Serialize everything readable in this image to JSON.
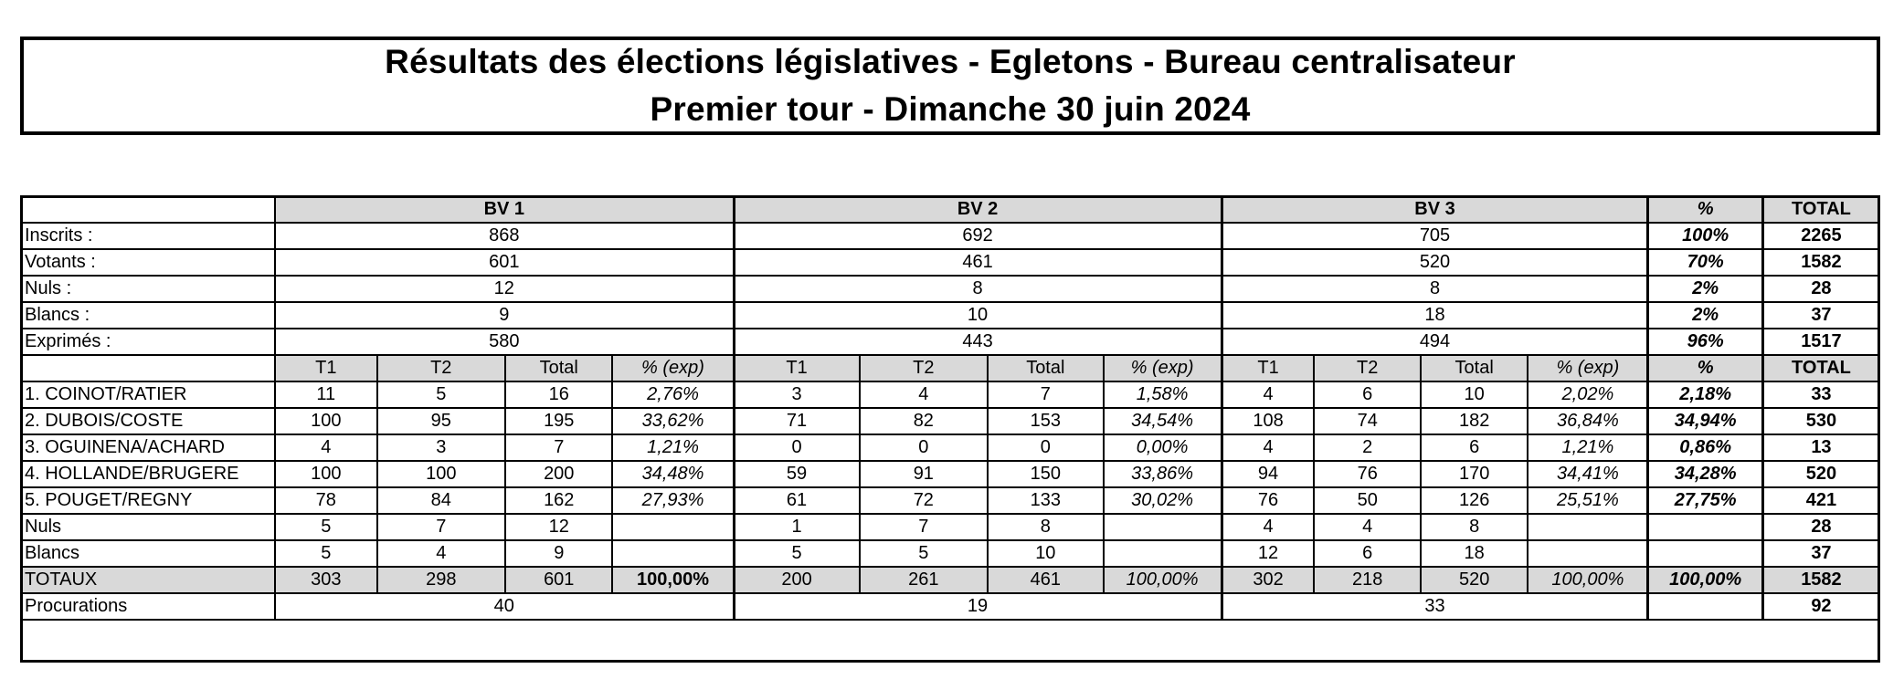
{
  "title": {
    "line1": "Résultats des élections législatives - Egletons - Bureau centralisateur",
    "line2": "Premier tour - Dimanche 30 juin 2024"
  },
  "header": {
    "bv1": "BV 1",
    "bv2": "BV 2",
    "bv3": "BV 3",
    "pct": "%",
    "total": "TOTAL"
  },
  "summary": [
    {
      "label": "Inscrits :",
      "bv1": "868",
      "bv2": "692",
      "bv3": "705",
      "pct": "100%",
      "total": "2265"
    },
    {
      "label": "Votants :",
      "bv1": "601",
      "bv2": "461",
      "bv3": "520",
      "pct": "70%",
      "total": "1582"
    },
    {
      "label": "Nuls :",
      "bv1": "12",
      "bv2": "8",
      "bv3": "8",
      "pct": "2%",
      "total": "28"
    },
    {
      "label": "Blancs :",
      "bv1": "9",
      "bv2": "10",
      "bv3": "18",
      "pct": "2%",
      "total": "37"
    },
    {
      "label": "Exprimés :",
      "bv1": "580",
      "bv2": "443",
      "bv3": "494",
      "pct": "96%",
      "total": "1517"
    }
  ],
  "subheader": {
    "t1": "T1",
    "t2": "T2",
    "total": "Total",
    "pct_exp": "% (exp)",
    "pct": "%",
    "grand_total": "TOTAL"
  },
  "candidates": [
    {
      "label": "1. COINOT/RATIER",
      "bv1": [
        "11",
        "5",
        "16",
        "2,76%"
      ],
      "bv2": [
        "3",
        "4",
        "7",
        "1,58%"
      ],
      "bv3": [
        "4",
        "6",
        "10",
        "2,02%"
      ],
      "pct": "2,18%",
      "total": "33"
    },
    {
      "label": "2. DUBOIS/COSTE",
      "bv1": [
        "100",
        "95",
        "195",
        "33,62%"
      ],
      "bv2": [
        "71",
        "82",
        "153",
        "34,54%"
      ],
      "bv3": [
        "108",
        "74",
        "182",
        "36,84%"
      ],
      "pct": "34,94%",
      "total": "530"
    },
    {
      "label": "3. OGUINENA/ACHARD",
      "bv1": [
        "4",
        "3",
        "7",
        "1,21%"
      ],
      "bv2": [
        "0",
        "0",
        "0",
        "0,00%"
      ],
      "bv3": [
        "4",
        "2",
        "6",
        "1,21%"
      ],
      "pct": "0,86%",
      "total": "13"
    },
    {
      "label": "4. HOLLANDE/BRUGERE",
      "bv1": [
        "100",
        "100",
        "200",
        "34,48%"
      ],
      "bv2": [
        "59",
        "91",
        "150",
        "33,86%"
      ],
      "bv3": [
        "94",
        "76",
        "170",
        "34,41%"
      ],
      "pct": "34,28%",
      "total": "520"
    },
    {
      "label": "5. POUGET/REGNY",
      "bv1": [
        "78",
        "84",
        "162",
        "27,93%"
      ],
      "bv2": [
        "61",
        "72",
        "133",
        "30,02%"
      ],
      "bv3": [
        "76",
        "50",
        "126",
        "25,51%"
      ],
      "pct": "27,75%",
      "total": "421"
    }
  ],
  "extra": [
    {
      "label": "Nuls",
      "bv1": [
        "5",
        "7",
        "12",
        ""
      ],
      "bv2": [
        "1",
        "7",
        "8",
        ""
      ],
      "bv3": [
        "4",
        "4",
        "8",
        ""
      ],
      "pct": "",
      "total": "28"
    },
    {
      "label": "Blancs",
      "bv1": [
        "5",
        "4",
        "9",
        ""
      ],
      "bv2": [
        "5",
        "5",
        "10",
        ""
      ],
      "bv3": [
        "12",
        "6",
        "18",
        ""
      ],
      "pct": "",
      "total": "37"
    }
  ],
  "totals": {
    "label": "TOTAUX",
    "bv1": [
      "303",
      "298",
      "601",
      "100,00%"
    ],
    "bv2": [
      "200",
      "261",
      "461",
      "100,00%"
    ],
    "bv3": [
      "302",
      "218",
      "520",
      "100,00%"
    ],
    "pct": "100,00%",
    "total": "1582"
  },
  "procurations": {
    "label": "Procurations",
    "bv1": "40",
    "bv2": "19",
    "bv3": "33",
    "total": "92"
  }
}
